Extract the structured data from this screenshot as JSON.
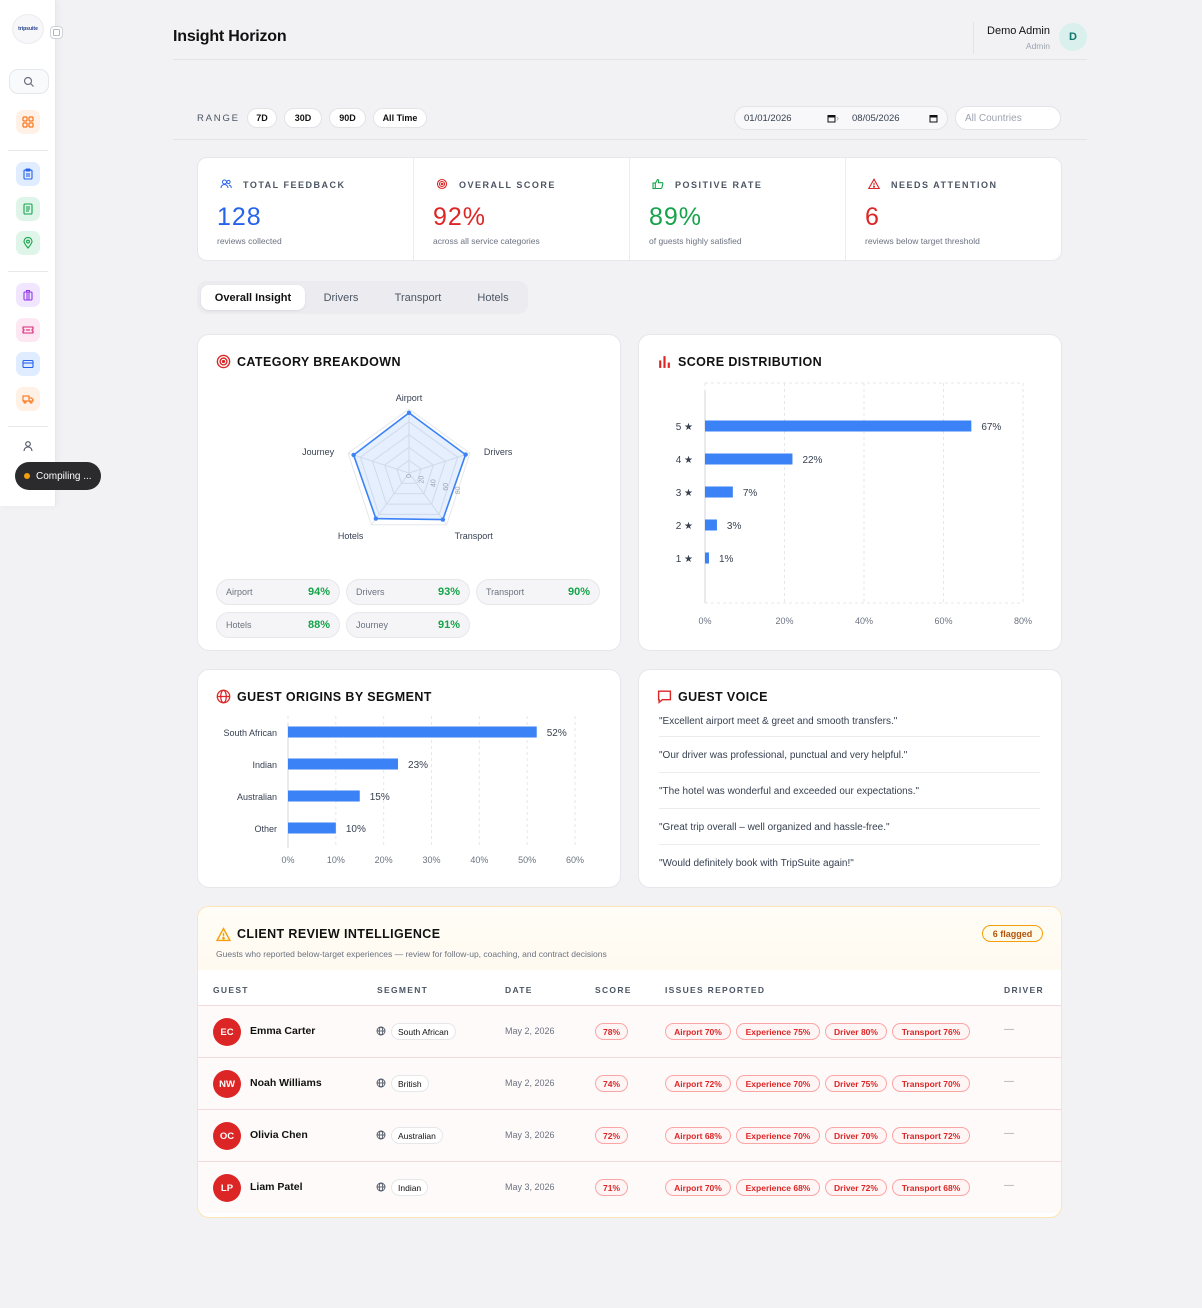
{
  "app": {
    "title": "Insight Horizon",
    "logo_text": "tripsuite"
  },
  "user": {
    "name": "Demo Admin",
    "role": "Admin",
    "initial": "D"
  },
  "sidebar": {
    "status": "Compiling ..."
  },
  "filters": {
    "range_label": "RANGE",
    "ranges": [
      "7D",
      "30D",
      "90D",
      "All Time"
    ],
    "date_from": "01/01/2026",
    "date_to": "08/05/2026",
    "country_placeholder": "All Countries"
  },
  "kpis": [
    {
      "label": "TOTAL FEEDBACK",
      "value": "128",
      "sub": "reviews collected",
      "color": "#2563eb"
    },
    {
      "label": "OVERALL SCORE",
      "value": "92%",
      "sub": "across all service categories",
      "color": "#dc2626"
    },
    {
      "label": "POSITIVE RATE",
      "value": "89%",
      "sub": "of guests highly satisfied",
      "color": "#16a34a"
    },
    {
      "label": "NEEDS ATTENTION",
      "value": "6",
      "sub": "reviews below target threshold",
      "color": "#dc2626"
    }
  ],
  "tabs": [
    "Overall Insight",
    "Drivers",
    "Transport",
    "Hotels"
  ],
  "category": {
    "title": "CATEGORY BREAKDOWN",
    "chips": [
      {
        "label": "Airport",
        "value": "94%"
      },
      {
        "label": "Drivers",
        "value": "93%"
      },
      {
        "label": "Transport",
        "value": "90%"
      },
      {
        "label": "Hotels",
        "value": "88%"
      },
      {
        "label": "Journey",
        "value": "91%"
      }
    ]
  },
  "distribution": {
    "title": "SCORE DISTRIBUTION"
  },
  "origins": {
    "title": "GUEST ORIGINS BY SEGMENT"
  },
  "voice": {
    "title": "GUEST VOICE",
    "quotes": [
      "\"Excellent airport meet & greet and smooth transfers.\"",
      "\"Our driver was professional, punctual and very helpful.\"",
      "\"The hotel was wonderful and exceeded our expectations.\"",
      "\"Great trip overall – well organized and hassle-free.\"",
      "\"Would definitely book with TripSuite again!\""
    ]
  },
  "review": {
    "title": "CLIENT REVIEW INTELLIGENCE",
    "subtitle": "Guests who reported below-target experiences — review for follow-up, coaching, and contract decisions",
    "badge": "6 flagged",
    "headers": [
      "GUEST",
      "SEGMENT",
      "DATE",
      "SCORE",
      "ISSUES REPORTED",
      "DRIVER"
    ],
    "rows": [
      {
        "initials": "EC",
        "name": "Emma Carter",
        "segment": "South African",
        "date": "May 2, 2026",
        "score": "78%",
        "issues": [
          "Airport 70%",
          "Experience 75%",
          "Driver 80%",
          "Transport 76%"
        ],
        "driver": "—"
      },
      {
        "initials": "NW",
        "name": "Noah Williams",
        "segment": "British",
        "date": "May 2, 2026",
        "score": "74%",
        "issues": [
          "Airport 72%",
          "Experience 70%",
          "Driver 75%",
          "Transport 70%"
        ],
        "driver": "—"
      },
      {
        "initials": "OC",
        "name": "Olivia Chen",
        "segment": "Australian",
        "date": "May 3, 2026",
        "score": "72%",
        "issues": [
          "Airport 68%",
          "Experience 70%",
          "Driver 70%",
          "Transport 72%"
        ],
        "driver": "—"
      },
      {
        "initials": "LP",
        "name": "Liam Patel",
        "segment": "Indian",
        "date": "May 3, 2026",
        "score": "71%",
        "issues": [
          "Airport 70%",
          "Experience 68%",
          "Driver 72%",
          "Transport 68%"
        ],
        "driver": "—"
      }
    ]
  },
  "chart_data": [
    {
      "type": "radar",
      "categories": [
        "Airport",
        "Drivers",
        "Transport",
        "Hotels",
        "Journey"
      ],
      "values": [
        94,
        93,
        90,
        88,
        91
      ],
      "tick_labels": [
        "0",
        "20",
        "40",
        "60",
        "80"
      ],
      "color": "#3b82f6"
    },
    {
      "type": "bar",
      "orientation": "horizontal",
      "categories": [
        "5 ★",
        "4 ★",
        "3 ★",
        "2 ★",
        "1 ★"
      ],
      "values": [
        67,
        22,
        7,
        3,
        1
      ],
      "value_labels": [
        "67%",
        "22%",
        "7%",
        "3%",
        "1%"
      ],
      "xlim": [
        0,
        80
      ],
      "x_ticks": [
        "0%",
        "20%",
        "40%",
        "60%",
        "80%"
      ],
      "color": "#3b82f6"
    },
    {
      "type": "bar",
      "orientation": "horizontal",
      "categories": [
        "South African",
        "Indian",
        "Australian",
        "Other"
      ],
      "values": [
        52,
        23,
        15,
        10
      ],
      "value_labels": [
        "52%",
        "23%",
        "15%",
        "10%"
      ],
      "xlim": [
        0,
        60
      ],
      "x_ticks": [
        "0%",
        "10%",
        "20%",
        "30%",
        "40%",
        "50%",
        "60%"
      ],
      "color": "#3b82f6"
    }
  ]
}
